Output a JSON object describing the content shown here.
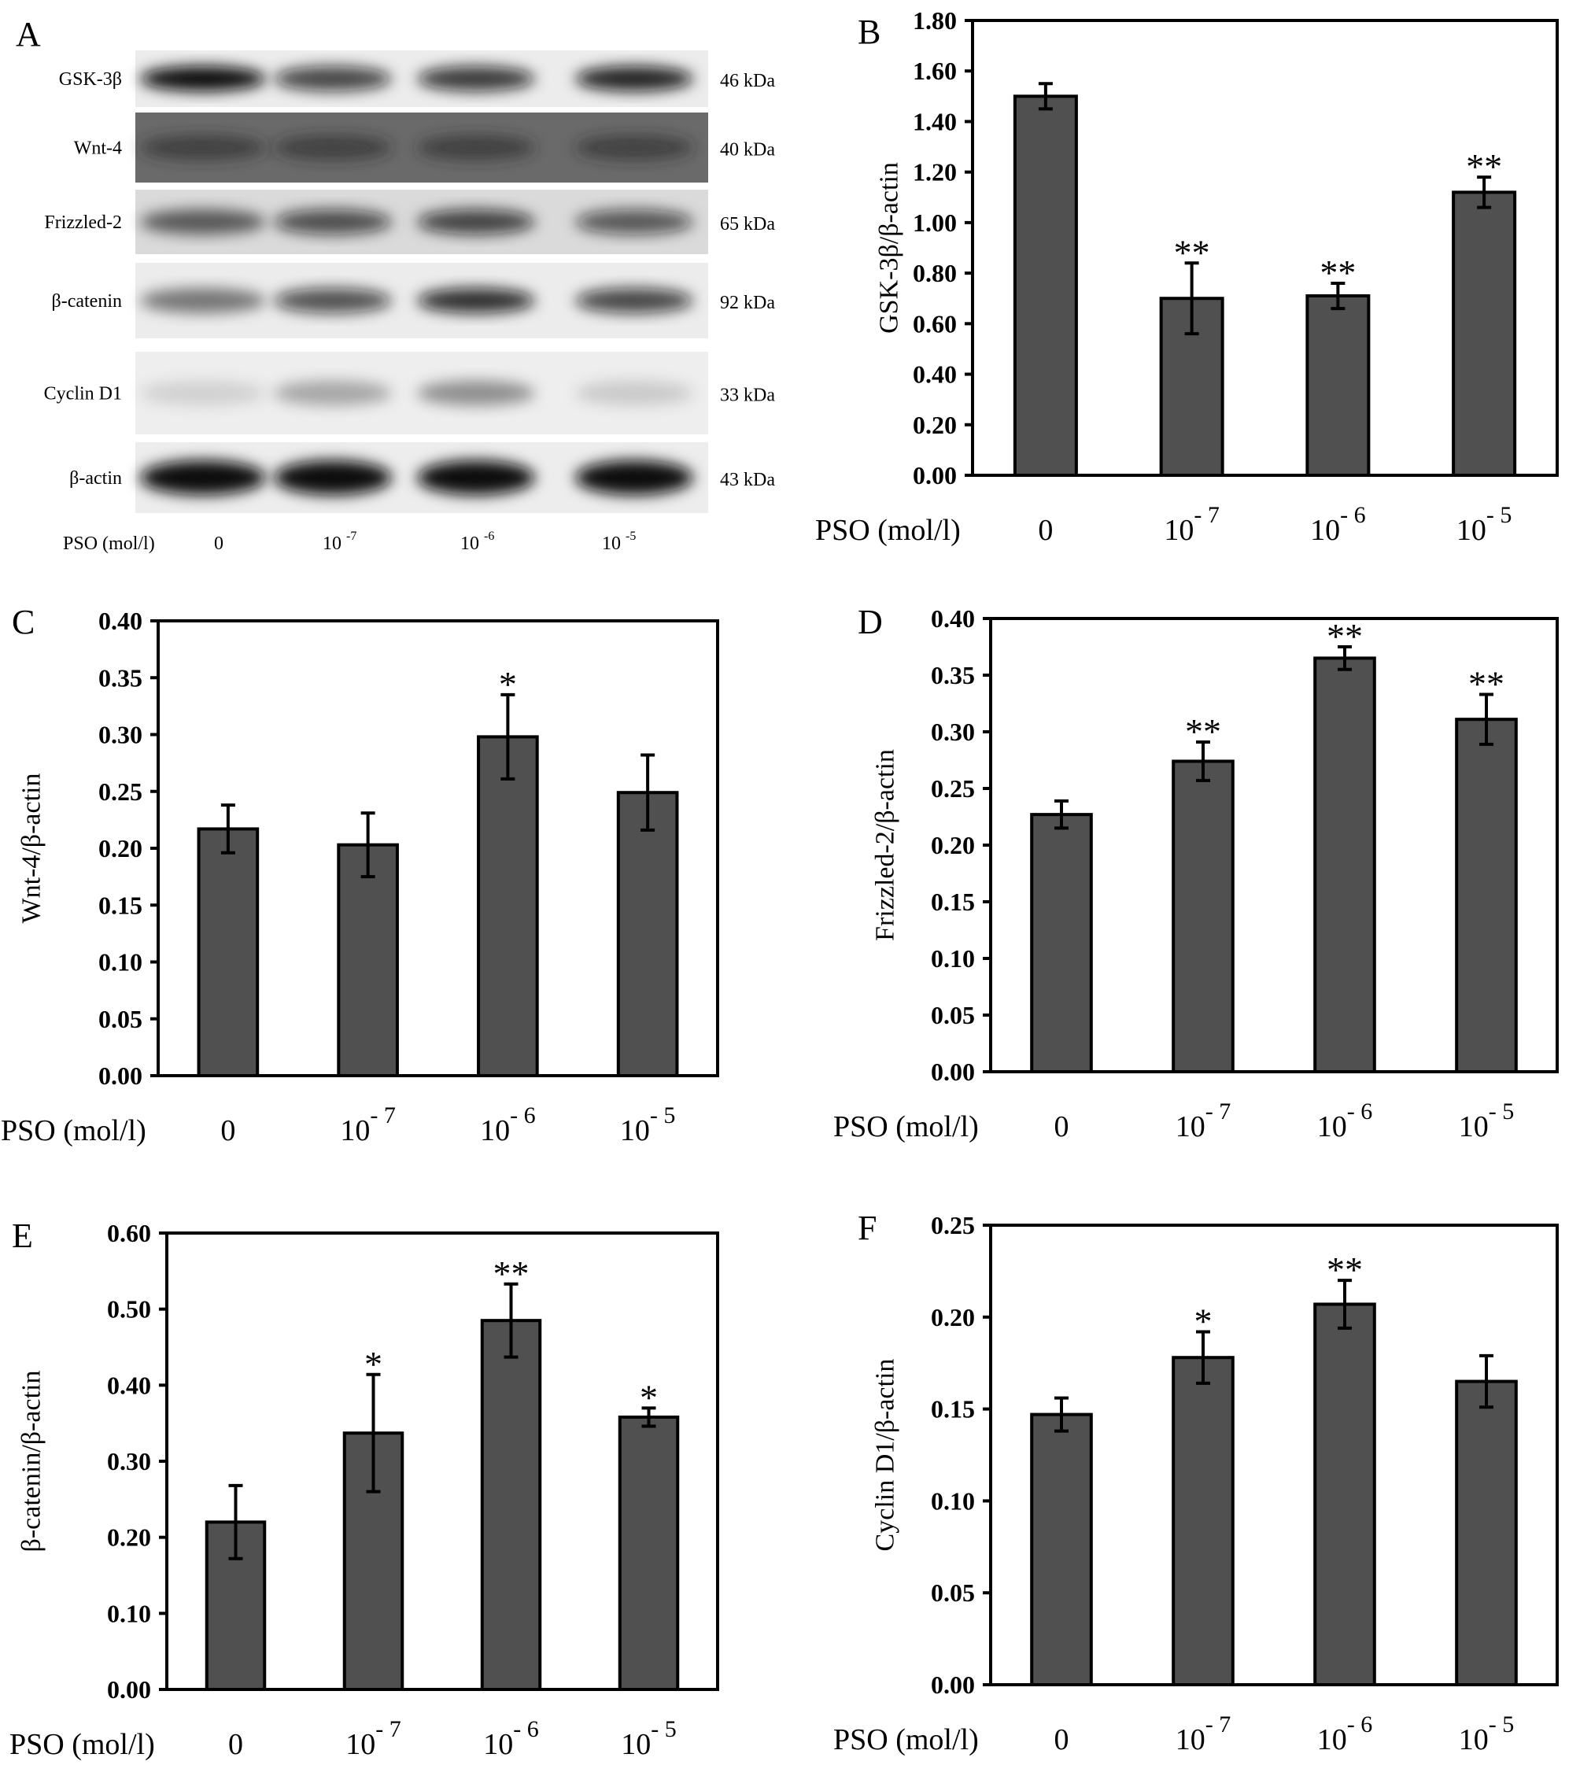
{
  "panel_a": {
    "letter": "A",
    "rows": [
      {
        "protein": "GSK-3β",
        "size": "46 kDa"
      },
      {
        "protein": "Wnt-4",
        "size": "40 kDa"
      },
      {
        "protein": "Frizzled-2",
        "size": "65 kDa"
      },
      {
        "protein": "β-catenin",
        "size": "92 kDa"
      },
      {
        "protein": "Cyclin D1",
        "size": "33 kDa"
      },
      {
        "protein": "β-actin",
        "size": "43 kDa"
      }
    ],
    "xaxis_label": "PSO (mol/l)",
    "lanes": [
      {
        "base": "0",
        "exp": ""
      },
      {
        "base": "10",
        "exp": "-7"
      },
      {
        "base": "10",
        "exp": "-6"
      },
      {
        "base": "10",
        "exp": "-5"
      }
    ]
  },
  "chart_data": [
    {
      "type": "bar",
      "panel": "B",
      "ylabel": "GSK-3β/β-actin",
      "xlabel": "PSO (mol/l)",
      "categories": [
        {
          "base": "0",
          "exp": ""
        },
        {
          "base": "10",
          "exp": "- 7"
        },
        {
          "base": "10",
          "exp": "- 6"
        },
        {
          "base": "10",
          "exp": "- 5"
        }
      ],
      "values": [
        1.5,
        0.7,
        0.71,
        1.12
      ],
      "errors": [
        0.05,
        0.14,
        0.05,
        0.06
      ],
      "significance": [
        "",
        "**",
        "**",
        "**"
      ],
      "ylim": [
        0,
        1.8
      ],
      "yticks": [
        "0.00",
        "0.20",
        "0.40",
        "0.60",
        "0.80",
        "1.00",
        "1.20",
        "1.40",
        "1.60",
        "1.80"
      ],
      "bar_color": "#505050"
    },
    {
      "type": "bar",
      "panel": "C",
      "ylabel": "Wnt-4/β-actin",
      "xlabel": "PSO (mol/l)",
      "categories": [
        {
          "base": "0",
          "exp": ""
        },
        {
          "base": "10",
          "exp": "- 7"
        },
        {
          "base": "10",
          "exp": "- 6"
        },
        {
          "base": "10",
          "exp": "- 5"
        }
      ],
      "values": [
        0.217,
        0.203,
        0.298,
        0.249
      ],
      "errors": [
        0.021,
        0.028,
        0.037,
        0.033
      ],
      "significance": [
        "",
        "",
        "*",
        ""
      ],
      "ylim": [
        0,
        0.4
      ],
      "yticks": [
        "0.00",
        "0.05",
        "0.10",
        "0.15",
        "0.20",
        "0.25",
        "0.30",
        "0.35",
        "0.40"
      ],
      "bar_color": "#505050"
    },
    {
      "type": "bar",
      "panel": "D",
      "ylabel": "Frizzled-2/β-actin",
      "xlabel": "PSO (mol/l)",
      "categories": [
        {
          "base": "0",
          "exp": ""
        },
        {
          "base": "10",
          "exp": "- 7"
        },
        {
          "base": "10",
          "exp": "- 6"
        },
        {
          "base": "10",
          "exp": "- 5"
        }
      ],
      "values": [
        0.227,
        0.274,
        0.365,
        0.311
      ],
      "errors": [
        0.012,
        0.017,
        0.01,
        0.022
      ],
      "significance": [
        "",
        "**",
        "**",
        "**"
      ],
      "ylim": [
        0,
        0.4
      ],
      "yticks": [
        "0.00",
        "0.05",
        "0.10",
        "0.15",
        "0.20",
        "0.25",
        "0.30",
        "0.35",
        "0.40"
      ],
      "bar_color": "#505050"
    },
    {
      "type": "bar",
      "panel": "E",
      "ylabel": "β-catenin/β-actin",
      "xlabel": "PSO (mol/l)",
      "categories": [
        {
          "base": "0",
          "exp": ""
        },
        {
          "base": "10",
          "exp": "- 7"
        },
        {
          "base": "10",
          "exp": "- 6"
        },
        {
          "base": "10",
          "exp": "- 5"
        }
      ],
      "values": [
        0.22,
        0.337,
        0.485,
        0.358
      ],
      "errors": [
        0.048,
        0.077,
        0.048,
        0.012
      ],
      "significance": [
        "",
        "*",
        "**",
        "*"
      ],
      "ylim": [
        0,
        0.6
      ],
      "yticks": [
        "0.00",
        "0.10",
        "0.20",
        "0.30",
        "0.40",
        "0.50",
        "0.60"
      ],
      "bar_color": "#505050"
    },
    {
      "type": "bar",
      "panel": "F",
      "ylabel": "Cyclin D1/β-actin",
      "xlabel": "PSO (mol/l)",
      "categories": [
        {
          "base": "0",
          "exp": ""
        },
        {
          "base": "10",
          "exp": "- 7"
        },
        {
          "base": "10",
          "exp": "- 6"
        },
        {
          "base": "10",
          "exp": "- 5"
        }
      ],
      "values": [
        0.147,
        0.178,
        0.207,
        0.165
      ],
      "errors": [
        0.009,
        0.014,
        0.013,
        0.014
      ],
      "significance": [
        "",
        "*",
        "**",
        ""
      ],
      "ylim": [
        0,
        0.25
      ],
      "yticks": [
        "0.00",
        "0.05",
        "0.10",
        "0.15",
        "0.20",
        "0.25"
      ],
      "bar_color": "#505050"
    }
  ]
}
